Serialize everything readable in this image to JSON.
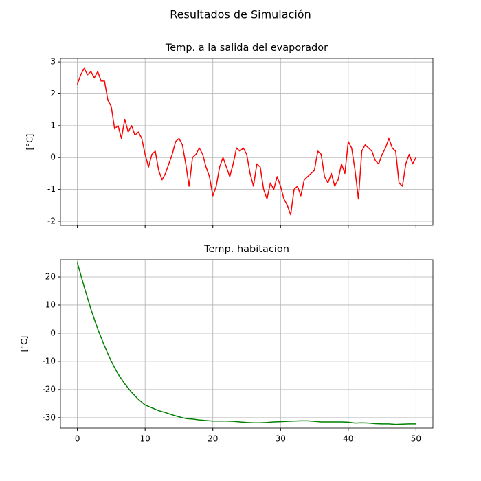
{
  "title": "Resultados de Simulación",
  "chart_data": [
    {
      "type": "line",
      "title": "Temp. a la salida del evaporador",
      "ylabel": "[°C]",
      "xlim": [
        -2.5,
        52.5
      ],
      "ylim": [
        -2.13,
        3.11
      ],
      "xticks": [
        0,
        10,
        20,
        30,
        40,
        50
      ],
      "xtick_labels": false,
      "yticks": [
        -2,
        -1,
        0,
        1,
        2,
        3
      ],
      "grid": true,
      "series": [
        {
          "color": "#ff0000",
          "x": [
            0,
            0.5,
            1,
            1.5,
            2,
            2.5,
            3,
            3.5,
            4,
            4.5,
            5,
            5.5,
            6,
            6.5,
            7,
            7.5,
            8,
            8.5,
            9,
            9.5,
            10,
            10.5,
            11,
            11.5,
            12,
            12.5,
            13,
            13.5,
            14,
            14.5,
            15,
            15.5,
            16,
            16.5,
            17,
            17.5,
            18,
            18.5,
            19,
            19.5,
            20,
            20.5,
            21,
            21.5,
            22,
            22.5,
            23,
            23.5,
            24,
            24.5,
            25,
            25.5,
            26,
            26.5,
            27,
            27.5,
            28,
            28.5,
            29,
            29.5,
            30,
            30.5,
            31,
            31.5,
            32,
            32.5,
            33,
            33.5,
            34,
            34.5,
            35,
            35.5,
            36,
            36.5,
            37,
            37.5,
            38,
            38.5,
            39,
            39.5,
            40,
            40.5,
            41,
            41.5,
            42,
            42.5,
            43,
            43.5,
            44,
            44.5,
            45,
            45.5,
            46,
            46.5,
            47,
            47.5,
            48,
            48.5,
            49,
            49.5,
            50
          ],
          "values": [
            2.3,
            2.6,
            2.8,
            2.6,
            2.7,
            2.5,
            2.7,
            2.4,
            2.4,
            1.8,
            1.6,
            0.9,
            1.0,
            0.6,
            1.2,
            0.8,
            1.0,
            0.7,
            0.8,
            0.6,
            0.1,
            -0.3,
            0.1,
            0.2,
            -0.4,
            -0.7,
            -0.5,
            -0.2,
            0.1,
            0.5,
            0.6,
            0.4,
            -0.2,
            -0.9,
            0.0,
            0.1,
            0.3,
            0.1,
            -0.3,
            -0.6,
            -1.2,
            -0.9,
            -0.3,
            0.0,
            -0.3,
            -0.6,
            -0.2,
            0.3,
            0.2,
            0.3,
            0.1,
            -0.5,
            -0.9,
            -0.2,
            -0.3,
            -1.0,
            -1.3,
            -0.8,
            -1.0,
            -0.6,
            -0.9,
            -1.3,
            -1.5,
            -1.8,
            -1.0,
            -0.9,
            -1.2,
            -0.7,
            -0.6,
            -0.5,
            -0.4,
            0.2,
            0.1,
            -0.6,
            -0.8,
            -0.5,
            -0.9,
            -0.7,
            -0.2,
            -0.5,
            0.5,
            0.3,
            -0.4,
            -1.3,
            0.2,
            0.4,
            0.3,
            0.2,
            -0.1,
            -0.2,
            0.1,
            0.3,
            0.6,
            0.3,
            0.2,
            -0.8,
            -0.9,
            -0.2,
            0.1,
            -0.2,
            0.0
          ]
        }
      ]
    },
    {
      "type": "line",
      "title": "Temp. habitacion",
      "ylabel": "[°C]",
      "xlim": [
        -2.5,
        52.5
      ],
      "ylim": [
        -33.7,
        26.1
      ],
      "xticks": [
        0,
        10,
        20,
        30,
        40,
        50
      ],
      "xtick_labels": true,
      "yticks": [
        -30,
        -20,
        -10,
        0,
        10,
        20
      ],
      "grid": true,
      "series": [
        {
          "color": "#008000",
          "x": [
            0,
            1,
            2,
            3,
            4,
            5,
            6,
            7,
            8,
            9,
            10,
            11,
            12,
            13,
            14,
            15,
            16,
            17,
            18,
            19,
            20,
            21,
            22,
            23,
            24,
            25,
            26,
            27,
            28,
            29,
            30,
            31,
            32,
            33,
            34,
            35,
            36,
            37,
            38,
            39,
            40,
            41,
            42,
            43,
            44,
            45,
            46,
            47,
            48,
            49,
            50
          ],
          "values": [
            25,
            16.5,
            8.5,
            1.5,
            -4.5,
            -10,
            -14.5,
            -18,
            -21,
            -23.5,
            -25.5,
            -26.5,
            -27.5,
            -28.2,
            -29,
            -29.7,
            -30.3,
            -30.5,
            -30.8,
            -31,
            -31.2,
            -31.2,
            -31.2,
            -31.3,
            -31.5,
            -31.7,
            -31.8,
            -31.8,
            -31.7,
            -31.5,
            -31.4,
            -31.3,
            -31.2,
            -31.1,
            -31.1,
            -31.3,
            -31.5,
            -31.5,
            -31.5,
            -31.5,
            -31.6,
            -31.9,
            -31.8,
            -31.9,
            -32.1,
            -32.2,
            -32.2,
            -32.4,
            -32.3,
            -32.2,
            -32.2
          ]
        }
      ]
    }
  ]
}
